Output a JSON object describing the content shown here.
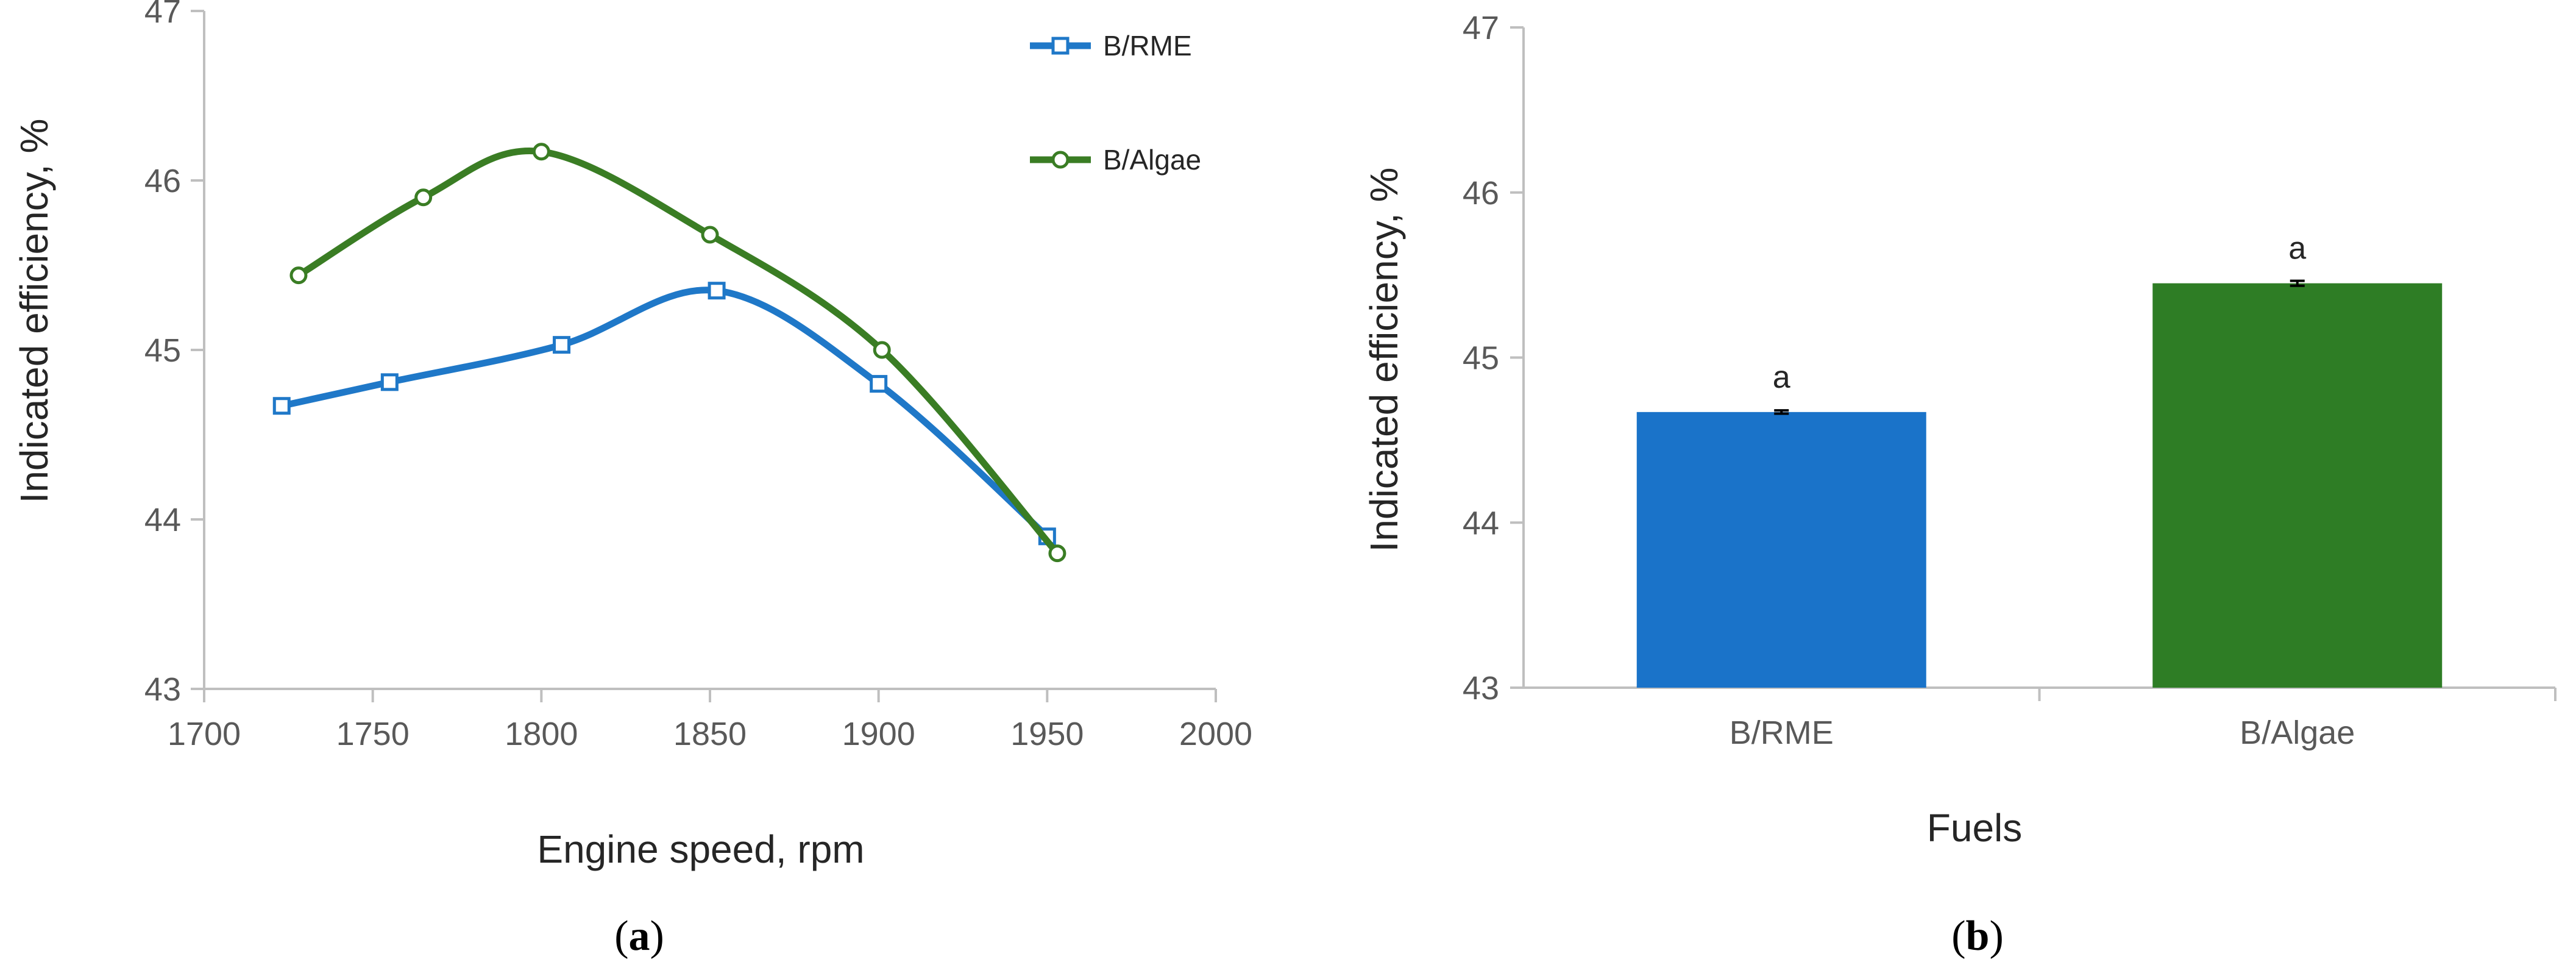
{
  "colors": {
    "rme": "#1f78c8",
    "algae": "#3a7d24",
    "axis": "#bfbfbf",
    "bar_rme": "#1a73c9",
    "bar_algae": "#2e7d25"
  },
  "chart_data": [
    {
      "type": "line",
      "panel": "a",
      "caption_letter": "a",
      "xlabel": "Engine speed, rpm",
      "ylabel": "Indicated efficiency, %",
      "xlim": [
        1700,
        2000
      ],
      "ylim": [
        43,
        47
      ],
      "xticks": [
        "1700",
        "1750",
        "1800",
        "1850",
        "1900",
        "1950",
        "2000"
      ],
      "yticks": [
        "43",
        "44",
        "45",
        "46",
        "47"
      ],
      "legend_position": "top-right",
      "series": [
        {
          "name": "B/RME",
          "marker": "square",
          "x": [
            1723,
            1755,
            1806,
            1852,
            1900,
            1950
          ],
          "y": [
            44.67,
            44.81,
            45.03,
            45.35,
            44.8,
            43.9
          ]
        },
        {
          "name": "B/Algae",
          "marker": "circle",
          "x": [
            1728,
            1765,
            1800,
            1850,
            1901,
            1953
          ],
          "y": [
            45.44,
            45.9,
            46.17,
            45.68,
            45.0,
            43.8
          ]
        }
      ]
    },
    {
      "type": "bar",
      "panel": "b",
      "caption_letter": "b",
      "xlabel": "Fuels",
      "ylabel": "Indicated efficiency, %",
      "ylim": [
        43,
        47
      ],
      "yticks": [
        "43",
        "44",
        "45",
        "46",
        "47"
      ],
      "categories": [
        "B/RME",
        "B/Algae"
      ],
      "values": [
        44.67,
        45.45
      ],
      "error": [
        0.01,
        0.015
      ],
      "significance_labels": [
        "a",
        "a"
      ]
    }
  ]
}
